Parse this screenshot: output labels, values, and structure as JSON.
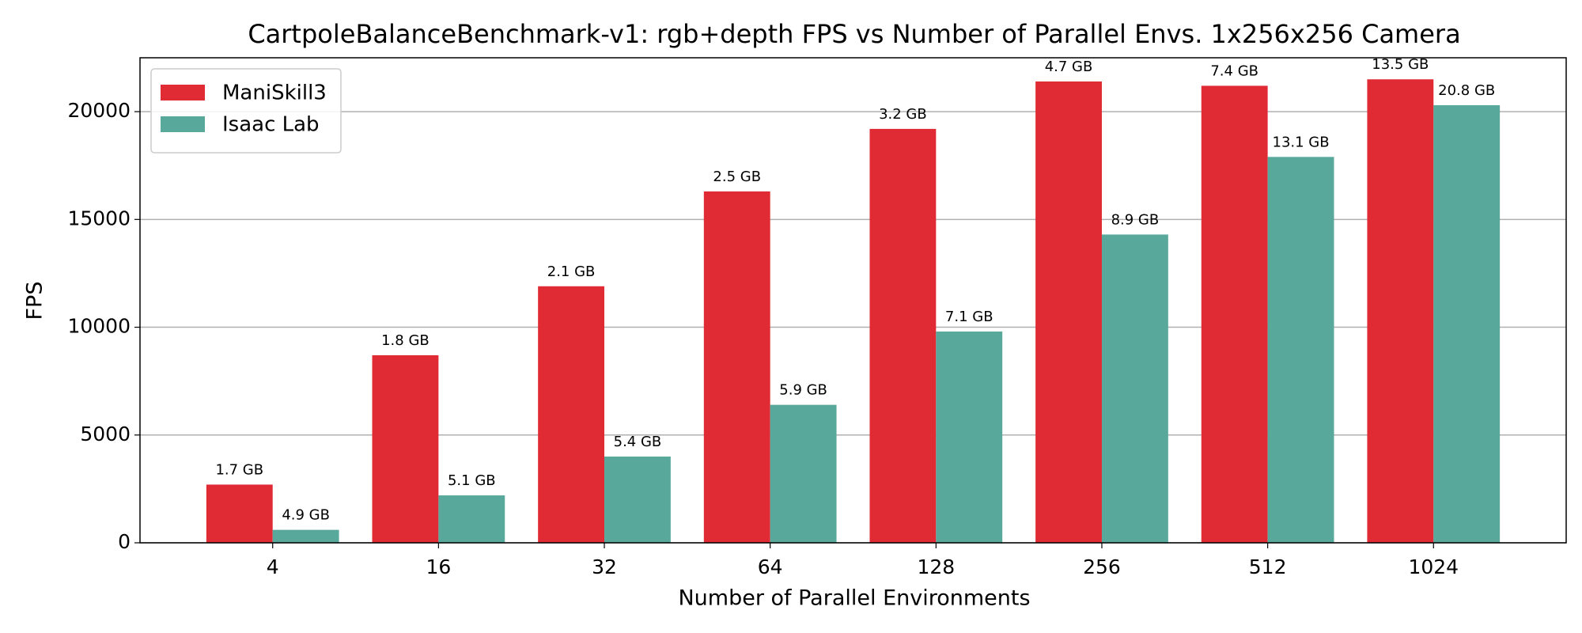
{
  "chart_data": {
    "type": "bar",
    "title": "CartpoleBalanceBenchmark-v1: rgb+depth FPS vs Number of Parallel Envs. 1x256x256 Camera",
    "x_label": "Number of Parallel Environments",
    "y_label": "FPS",
    "categories": [
      "4",
      "16",
      "32",
      "64",
      "128",
      "256",
      "512",
      "1024"
    ],
    "series": [
      {
        "name": "ManiSkill3",
        "color": "#e02b35",
        "values": [
          2700,
          8700,
          11900,
          16300,
          19200,
          21400,
          21200,
          21500
        ],
        "memory_labels": [
          "1.7 GB",
          "1.8 GB",
          "2.1 GB",
          "2.5 GB",
          "3.2 GB",
          "4.7 GB",
          "7.4 GB",
          "13.5 GB"
        ]
      },
      {
        "name": "Isaac Lab",
        "color": "#59a89c",
        "values": [
          600,
          2200,
          4000,
          6400,
          9800,
          14300,
          17900,
          20300
        ],
        "memory_labels": [
          "4.9 GB",
          "5.1 GB",
          "5.4 GB",
          "5.9 GB",
          "7.1 GB",
          "8.9 GB",
          "13.1 GB",
          "20.8 GB"
        ]
      }
    ],
    "ylim": [
      0,
      22500
    ],
    "yticks": [
      0,
      5000,
      10000,
      15000,
      20000
    ],
    "grid": true,
    "legend": "upper left"
  }
}
